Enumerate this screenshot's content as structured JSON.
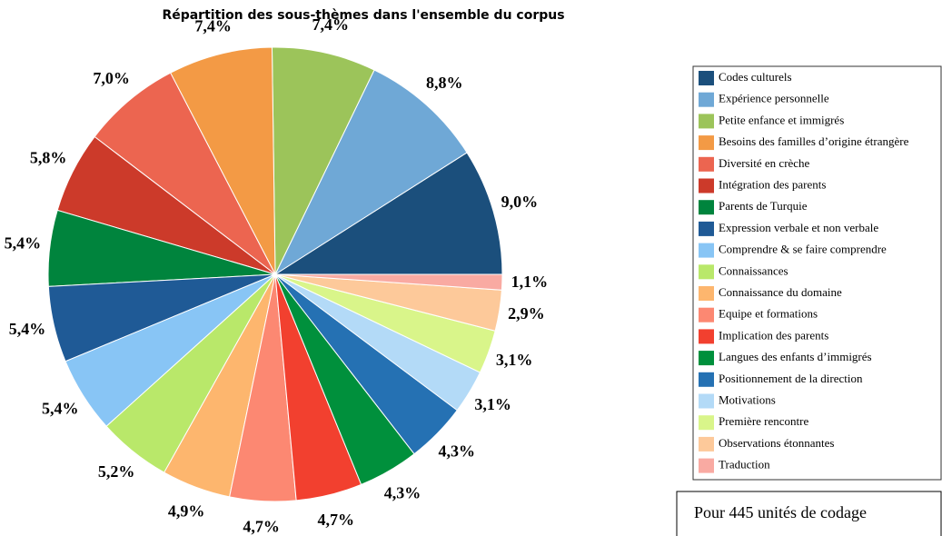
{
  "chart_data": {
    "type": "pie",
    "title": "Répartition des sous-thèmes dans l'ensemble du corpus",
    "categories": [
      "Codes culturels",
      "Expérience personnelle",
      "Petite enfance et immigrés",
      "Besoins des familles d’origine étrangère",
      "Diversité en crèche",
      "Intégration des parents",
      "Parents de Turquie",
      "Expression verbale et non verbale",
      "Comprendre & se faire comprendre",
      "Connaissances",
      "Connaissance du domaine",
      "Equipe et formations",
      "Implication des parents",
      "Langues des enfants d’immigrés",
      "Positionnement de la direction",
      "Motivations",
      "Première rencontre",
      "Observations étonnantes",
      "Traduction"
    ],
    "values": [
      9.0,
      8.8,
      7.4,
      7.4,
      7.0,
      5.8,
      5.4,
      5.4,
      5.4,
      5.2,
      4.9,
      4.7,
      4.7,
      4.3,
      4.3,
      3.1,
      3.1,
      2.9,
      1.1
    ],
    "value_labels": [
      "9,0%",
      "8,8%",
      "7,4%",
      "7,4%",
      "7,0%",
      "5,8%",
      "5,4%",
      "5,4%",
      "5,4%",
      "5,2%",
      "4,9%",
      "4,7%",
      "4,7%",
      "4,3%",
      "4,3%",
      "3,1%",
      "3,1%",
      "2,9%",
      "1,1%"
    ],
    "colors": [
      "#1b4f7c",
      "#6fa8d6",
      "#9cc45a",
      "#f39a45",
      "#ec6550",
      "#cc3a2a",
      "#00843d",
      "#1f5a96",
      "#88c5f5",
      "#b9e86a",
      "#fdb66e",
      "#fc8872",
      "#f2402f",
      "#00903c",
      "#2571b3",
      "#b3daf7",
      "#d9f58a",
      "#fdc99a",
      "#f9aaa2"
    ],
    "legend": "right",
    "note": "Pour 445 unités de codage"
  }
}
